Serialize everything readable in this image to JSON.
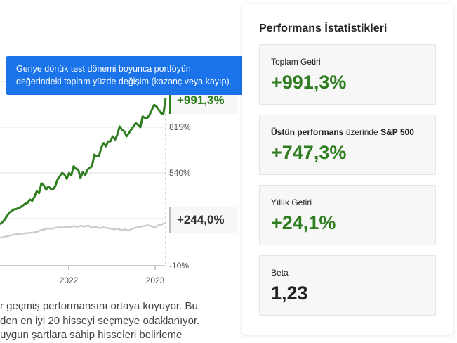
{
  "tooltip": {
    "line1": "Geriye dönük test dönemi boyunca portföyün",
    "line2": "değerindeki toplam yüzde değişim (kazanç veya kayıp)."
  },
  "chart_data": {
    "type": "line",
    "x_tick_labels": [
      "2022",
      "2023"
    ],
    "y_tick_labels": [
      "815%",
      "540%",
      "-10%"
    ],
    "series": [
      {
        "end_label": "+991,3%",
        "color": "#2e7d1f",
        "values": [
          230,
          244,
          258,
          280,
          300,
          310,
          320,
          322,
          328,
          334,
          345,
          355,
          360,
          380,
          372,
          398,
          430,
          418,
          478,
          465,
          438,
          458,
          445,
          440,
          460,
          500,
          520,
          540,
          530,
          505,
          540,
          525,
          580,
          565,
          560,
          510,
          545,
          525,
          560,
          570,
          580,
          650,
          640,
          640,
          690,
          720,
          700,
          730,
          730,
          760,
          740,
          770,
          820,
          800,
          790,
          760,
          780,
          800,
          820,
          840,
          830,
          815,
          880,
          870,
          870,
          890,
          920,
          950,
          940,
          920,
          900,
          895,
          991
        ]
      },
      {
        "end_label": "+244,0%",
        "color": "#cccccc",
        "values": [
          155,
          160,
          165,
          170,
          175,
          178,
          180,
          182,
          185,
          186,
          190,
          200,
          205,
          212,
          208,
          214,
          218,
          216,
          220,
          218,
          225,
          220,
          227,
          222,
          228,
          215,
          220,
          212,
          218,
          213,
          210,
          205,
          210,
          200,
          205,
          198,
          210,
          215,
          220,
          225,
          230,
          225,
          215,
          230,
          235,
          244
        ]
      }
    ]
  },
  "description": {
    "line1": "r geçmiş performansını ortaya koyuyor. Bu",
    "line2": "den en iyi 20 hisseyi seçmeye odaklanıyor.",
    "line3": "uygun şartlara sahip hisseleri belirleme"
  },
  "stats": {
    "title": "Performans İstatistikleri",
    "cards": [
      {
        "label": "Toplam Getiri",
        "value": "+991,3%"
      },
      {
        "label_pre": "Üstün performans",
        "label_mid": " üzerinde ",
        "label_post": "S&P 500",
        "value": "+747,3%"
      },
      {
        "label": "Yıllık Getiri",
        "value": "+24,1%"
      },
      {
        "label": "Beta",
        "value": "1,23"
      }
    ]
  },
  "colors": {
    "positive": "#2e7d1f",
    "tooltip_bg": "#1a73e8",
    "benchmark_line": "#cccccc"
  }
}
